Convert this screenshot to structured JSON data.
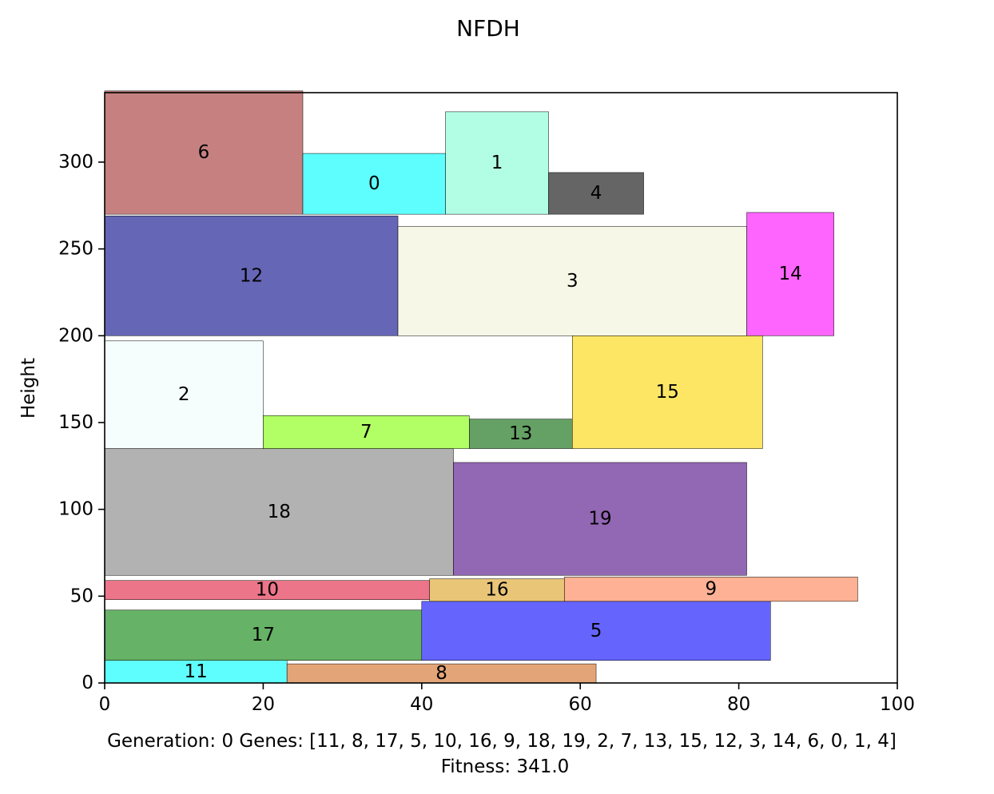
{
  "chart_data": {
    "type": "rect-packing",
    "title": "NFDH",
    "xlabel": "",
    "ylabel": "Height",
    "xlim": [
      0,
      100
    ],
    "ylim": [
      0,
      340
    ],
    "xticks": [
      0,
      20,
      40,
      60,
      80,
      100
    ],
    "yticks": [
      0,
      50,
      100,
      150,
      200,
      250,
      300
    ],
    "grid": false,
    "legend": "none",
    "caption_line1": "Generation: 0 Genes: [11, 8, 17, 5, 10, 16, 9, 18, 19, 2, 7, 13, 15, 12, 3, 14, 6, 0, 1, 4]",
    "caption_line2": "Fitness: 341.0",
    "rects": [
      {
        "id": "11",
        "x": 0,
        "y": 0,
        "w": 23,
        "h": 13,
        "color": "#5ffefe"
      },
      {
        "id": "8",
        "x": 23,
        "y": 0,
        "w": 39,
        "h": 11,
        "color": "#e3a577"
      },
      {
        "id": "17",
        "x": 0,
        "y": 13,
        "w": 40,
        "h": 29,
        "color": "#66b266"
      },
      {
        "id": "5",
        "x": 40,
        "y": 13,
        "w": 44,
        "h": 34,
        "color": "#6565fe"
      },
      {
        "id": "10",
        "x": 0,
        "y": 48,
        "w": 41,
        "h": 11,
        "color": "#ec7589"
      },
      {
        "id": "16",
        "x": 41,
        "y": 47,
        "w": 17,
        "h": 13,
        "color": "#e9c677"
      },
      {
        "id": "9",
        "x": 58,
        "y": 47,
        "w": 37,
        "h": 14,
        "color": "#feb194"
      },
      {
        "id": "18",
        "x": 0,
        "y": 62,
        "w": 44,
        "h": 73,
        "color": "#b2b2b2"
      },
      {
        "id": "19",
        "x": 44,
        "y": 62,
        "w": 37,
        "h": 65,
        "color": "#9267b4"
      },
      {
        "id": "2",
        "x": 0,
        "y": 135,
        "w": 20,
        "h": 62,
        "color": "#f6fdfd"
      },
      {
        "id": "7",
        "x": 20,
        "y": 135,
        "w": 26,
        "h": 19,
        "color": "#b2fe65"
      },
      {
        "id": "13",
        "x": 46,
        "y": 135,
        "w": 13,
        "h": 17,
        "color": "#65a065"
      },
      {
        "id": "15",
        "x": 59,
        "y": 135,
        "w": 24,
        "h": 65,
        "color": "#fee665"
      },
      {
        "id": "12",
        "x": 0,
        "y": 200,
        "w": 37,
        "h": 69,
        "color": "#6566b5"
      },
      {
        "id": "3",
        "x": 37,
        "y": 200,
        "w": 44,
        "h": 63,
        "color": "#f6f7e6"
      },
      {
        "id": "14",
        "x": 81,
        "y": 200,
        "w": 11,
        "h": 71,
        "color": "#fe65fe"
      },
      {
        "id": "6",
        "x": 0,
        "y": 270,
        "w": 25,
        "h": 71,
        "color": "#c78080"
      },
      {
        "id": "0",
        "x": 25,
        "y": 270,
        "w": 18,
        "h": 35,
        "color": "#5ffefe"
      },
      {
        "id": "1",
        "x": 43,
        "y": 270,
        "w": 13,
        "h": 59,
        "color": "#b2fee5"
      },
      {
        "id": "4",
        "x": 56,
        "y": 270,
        "w": 12,
        "h": 24,
        "color": "#656565"
      }
    ]
  }
}
